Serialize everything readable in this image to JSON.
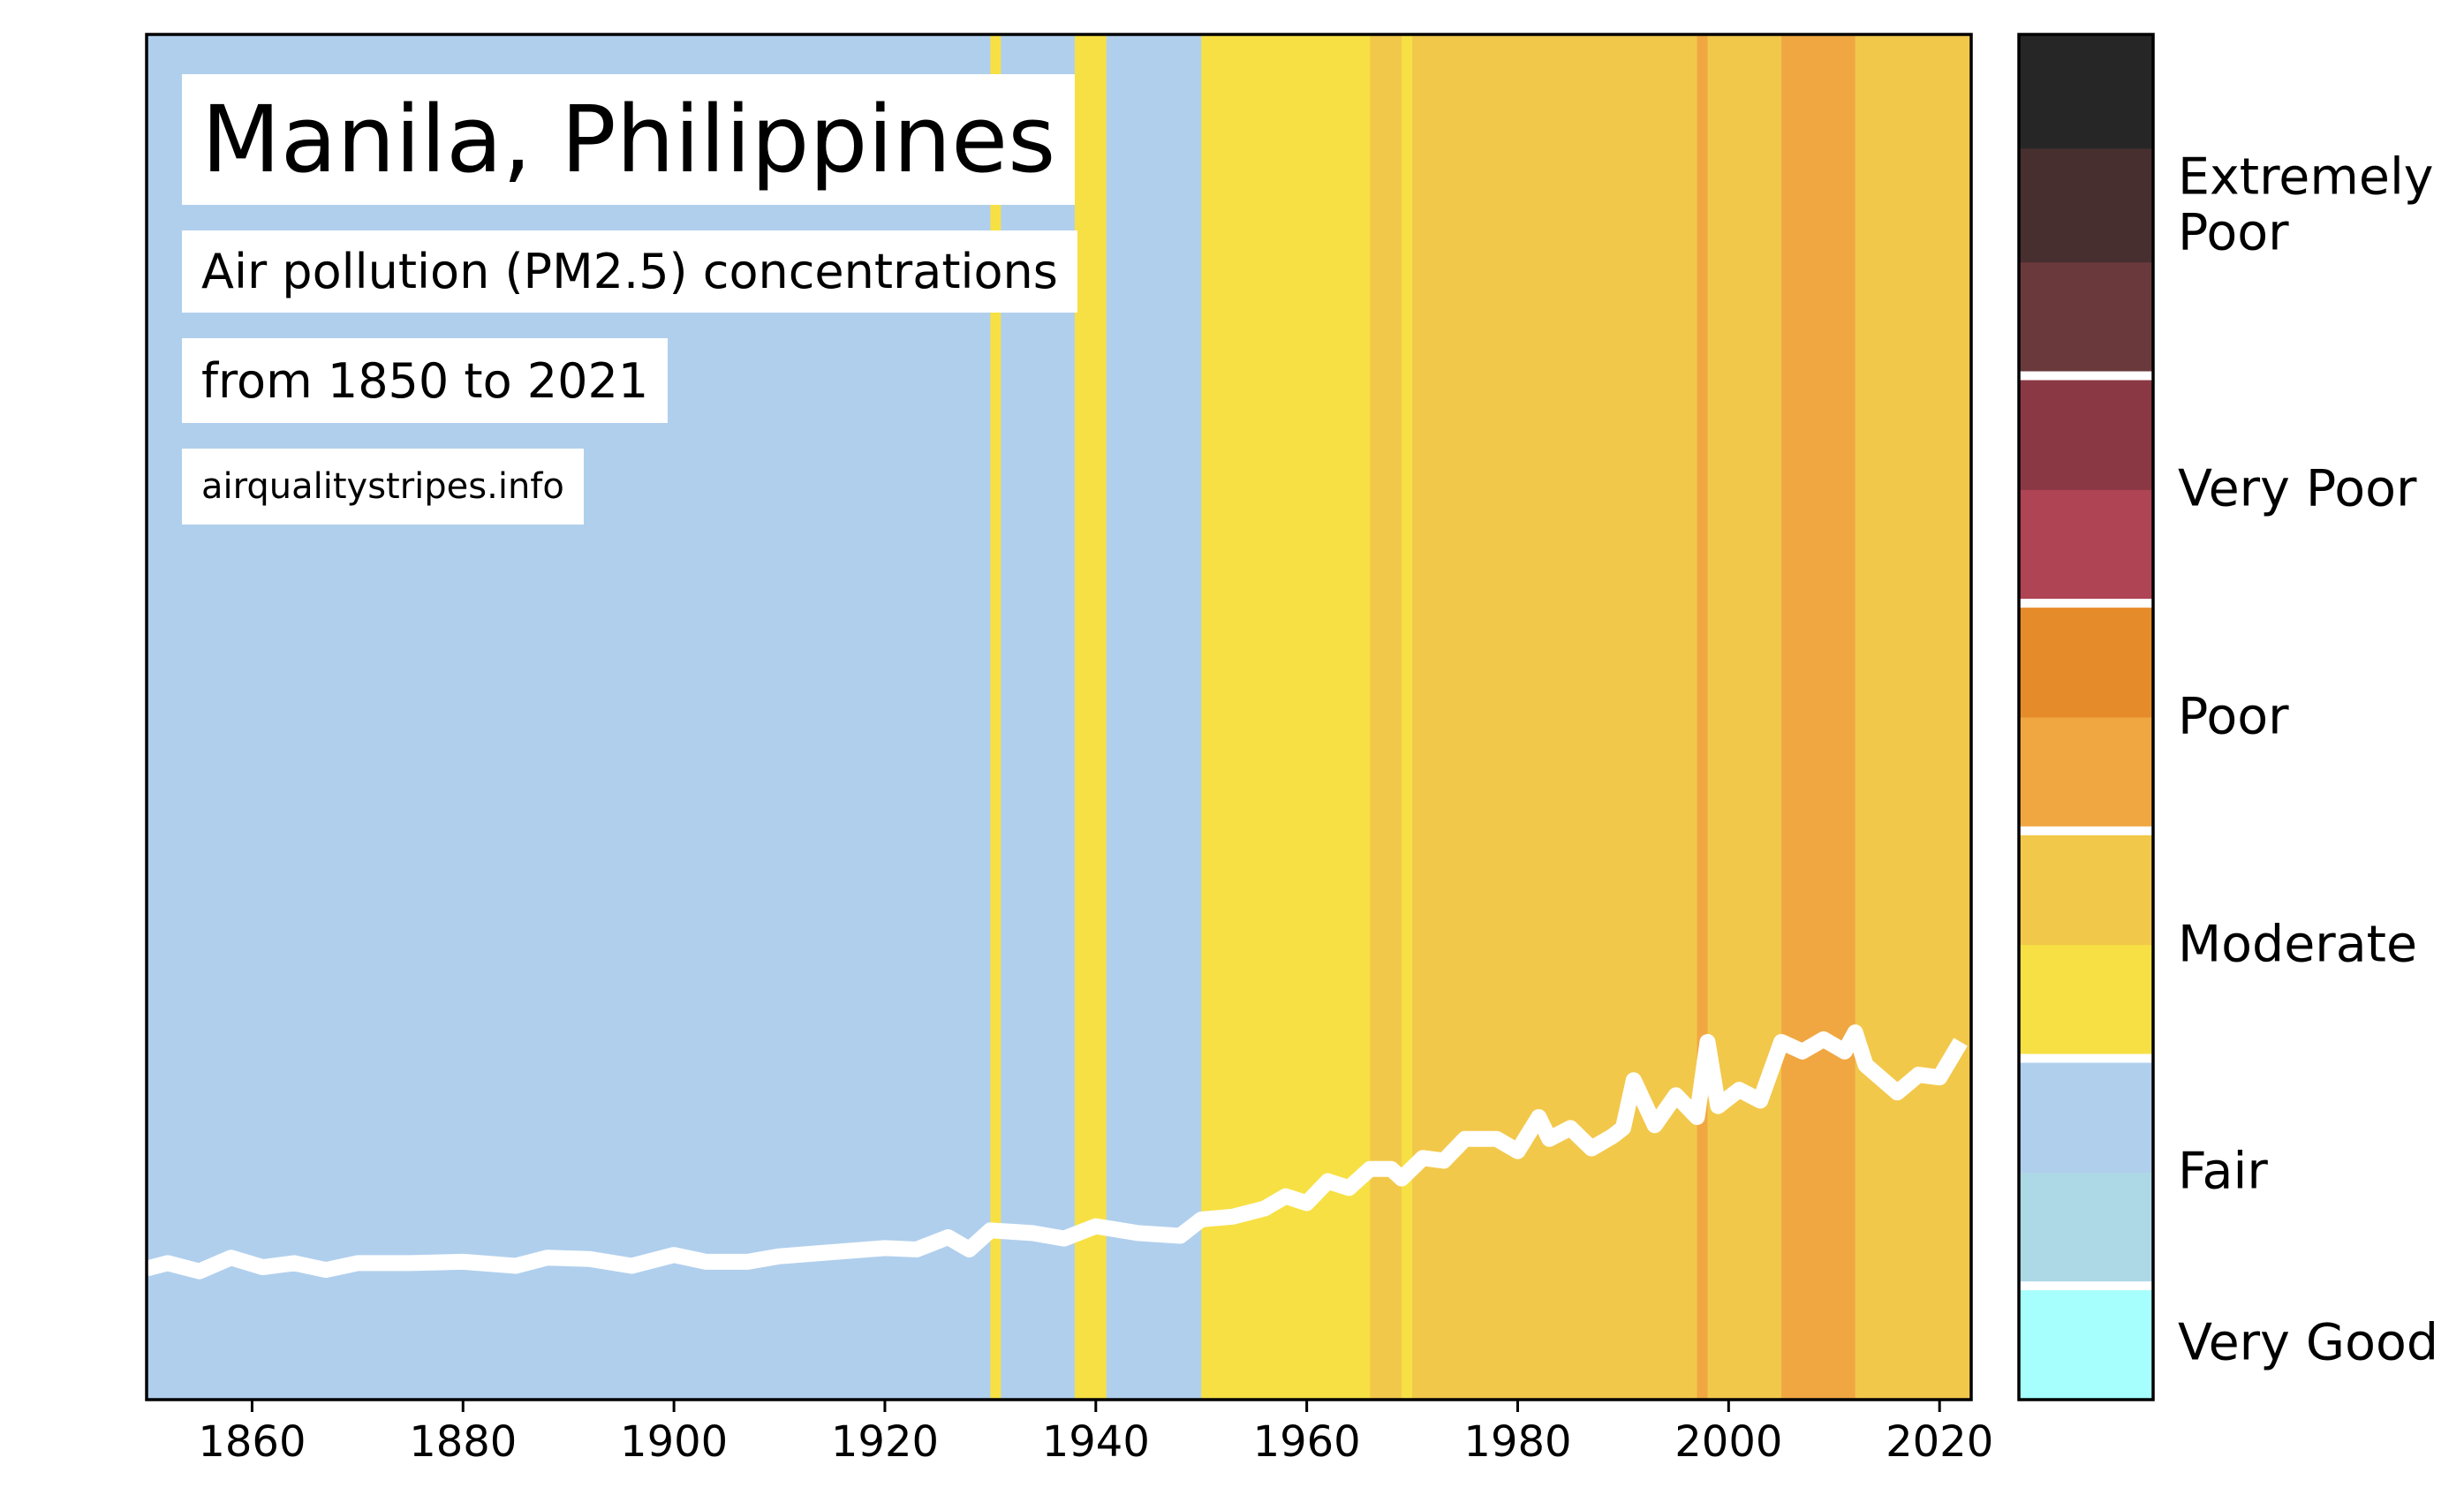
{
  "chart_data": {
    "type": "stripes",
    "title": "Manila, Philippines",
    "subtitle": "Air pollution (PM2.5) concentrations",
    "period": "from 1850 to 2021",
    "source": "airqualitystripes.info",
    "xlim": [
      1850,
      2023
    ],
    "xticks": [
      1860,
      1880,
      1900,
      1920,
      1940,
      1960,
      1980,
      2000,
      2020
    ],
    "ylim": [
      0,
      100
    ],
    "levels": [
      "#a6fffd",
      "#add8e6",
      "#b0cfed",
      "#f7e044",
      "#f2c84b",
      "#f0a742",
      "#e68b29",
      "#ae4454",
      "#8a3844",
      "#6a393c",
      "#472e2f",
      "#262626"
    ],
    "level_groups": [
      {
        "label": "Very Good",
        "from": 0,
        "to": 0
      },
      {
        "label": "Fair",
        "from": 1,
        "to": 2
      },
      {
        "label": "Moderate",
        "from": 3,
        "to": 4
      },
      {
        "label": "Poor",
        "from": 5,
        "to": 6
      },
      {
        "label": "Very Poor",
        "from": 7,
        "to": 8
      },
      {
        "label": "Extremely\nPoor",
        "from": 9,
        "to": 11
      }
    ],
    "stripes": [
      {
        "start": 1850,
        "end": 1930,
        "level": 2
      },
      {
        "start": 1930,
        "end": 1931,
        "level": 3
      },
      {
        "start": 1931,
        "end": 1938,
        "level": 2
      },
      {
        "start": 1938,
        "end": 1941,
        "level": 3
      },
      {
        "start": 1941,
        "end": 1950,
        "level": 2
      },
      {
        "start": 1950,
        "end": 1966,
        "level": 3
      },
      {
        "start": 1966,
        "end": 1969,
        "level": 4
      },
      {
        "start": 1969,
        "end": 1970,
        "level": 3
      },
      {
        "start": 1970,
        "end": 1997,
        "level": 4
      },
      {
        "start": 1997,
        "end": 1998,
        "level": 5
      },
      {
        "start": 1998,
        "end": 2005,
        "level": 4
      },
      {
        "start": 2005,
        "end": 2012,
        "level": 5
      },
      {
        "start": 2012,
        "end": 2023,
        "level": 4
      }
    ],
    "line_color": "#ffffff",
    "x": [
      1850,
      1852,
      1855,
      1858,
      1861,
      1864,
      1867,
      1870,
      1875,
      1880,
      1885,
      1888,
      1892,
      1896,
      1900,
      1903,
      1907,
      1910,
      1915,
      1920,
      1923,
      1926,
      1928,
      1930,
      1934,
      1937,
      1940,
      1944,
      1948,
      1950,
      1953,
      1956,
      1958,
      1960,
      1962,
      1964,
      1966,
      1968,
      1969,
      1971,
      1973,
      1975,
      1978,
      1980,
      1982,
      1983,
      1985,
      1987,
      1989,
      1990,
      1991,
      1993,
      1995,
      1997,
      1998,
      1999,
      2001,
      2003,
      2005,
      2007,
      2009,
      2011,
      2012,
      2013,
      2016,
      2018,
      2020,
      2022
    ],
    "values": [
      9.6,
      10.0,
      9.4,
      10.4,
      9.7,
      10.0,
      9.5,
      10.0,
      10.0,
      10.1,
      9.8,
      10.4,
      10.3,
      9.8,
      10.6,
      10.1,
      10.1,
      10.5,
      10.8,
      11.1,
      11.0,
      11.9,
      11.0,
      12.4,
      12.2,
      11.8,
      12.7,
      12.2,
      12.0,
      13.2,
      13.4,
      14.0,
      14.9,
      14.4,
      16.0,
      15.5,
      16.9,
      16.9,
      16.2,
      17.7,
      17.5,
      19.1,
      19.1,
      18.2,
      20.7,
      19.1,
      19.9,
      18.4,
      19.3,
      19.9,
      23.4,
      20.1,
      22.3,
      20.7,
      26.2,
      21.5,
      22.7,
      21.9,
      26.2,
      25.5,
      26.4,
      25.5,
      26.9,
      24.5,
      22.5,
      23.8,
      23.6,
      26.2
    ]
  }
}
